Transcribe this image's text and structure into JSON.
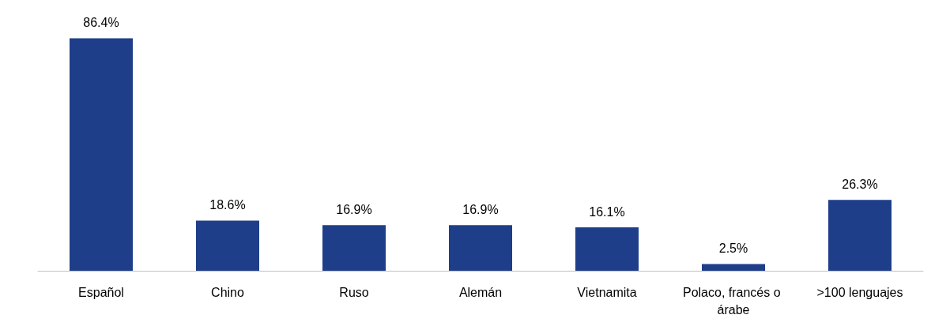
{
  "chart_data": {
    "type": "bar",
    "categories": [
      "Español",
      "Chino",
      "Ruso",
      "Alemán",
      "Vietnamita",
      "Polaco, francés o árabe",
      ">100 lenguajes"
    ],
    "values": [
      86.4,
      18.6,
      16.9,
      16.9,
      16.1,
      2.5,
      26.3
    ],
    "value_labels": [
      "86.4%",
      "18.6%",
      "16.9%",
      "16.9%",
      "16.1%",
      "2.5%",
      "26.3%"
    ],
    "color": "#1f3e8a"
  }
}
